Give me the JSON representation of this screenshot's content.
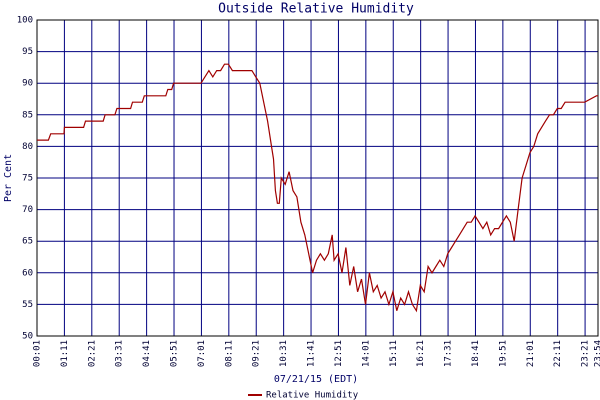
{
  "chart_data": {
    "type": "line",
    "title": "Outside Relative Humidity",
    "x_label": "07/21/15 (EDT)",
    "y_label": "Per Cent",
    "x": [
      "00:01",
      "00:30",
      "00:36",
      "01:10",
      "01:11",
      "02:00",
      "02:05",
      "02:50",
      "02:55",
      "03:20",
      "03:25",
      "04:00",
      "04:05",
      "04:30",
      "04:35",
      "05:30",
      "05:35",
      "05:45",
      "05:50",
      "06:50",
      "07:00",
      "07:10",
      "07:20",
      "07:30",
      "07:40",
      "07:50",
      "08:00",
      "08:10",
      "08:20",
      "08:40",
      "09:10",
      "09:20",
      "09:30",
      "09:40",
      "09:50",
      "10:00",
      "10:05",
      "10:10",
      "10:15",
      "10:20",
      "10:25",
      "10:35",
      "10:45",
      "10:55",
      "11:05",
      "11:15",
      "11:25",
      "11:35",
      "11:45",
      "11:55",
      "12:05",
      "12:15",
      "12:25",
      "12:35",
      "12:40",
      "12:50",
      "13:00",
      "13:10",
      "13:20",
      "13:30",
      "13:40",
      "13:50",
      "14:00",
      "14:10",
      "14:20",
      "14:30",
      "14:40",
      "14:50",
      "15:00",
      "15:10",
      "15:20",
      "15:30",
      "15:40",
      "15:50",
      "16:00",
      "16:10",
      "16:20",
      "16:30",
      "16:40",
      "16:50",
      "17:00",
      "17:10",
      "17:20",
      "17:30",
      "17:40",
      "17:50",
      "18:00",
      "18:10",
      "18:20",
      "18:30",
      "18:40",
      "18:50",
      "19:00",
      "19:10",
      "19:20",
      "19:30",
      "19:40",
      "19:50",
      "20:00",
      "20:10",
      "20:20",
      "20:30",
      "20:40",
      "20:50",
      "21:00",
      "21:10",
      "21:20",
      "21:30",
      "21:40",
      "21:50",
      "22:00",
      "22:10",
      "22:20",
      "22:30",
      "22:50",
      "23:20",
      "23:50",
      "23:54"
    ],
    "series": [
      {
        "name": "Relative Humidity",
        "color": "#a00000",
        "values": [
          81,
          81,
          82,
          82,
          83,
          83,
          84,
          84,
          85,
          85,
          86,
          86,
          87,
          87,
          88,
          88,
          89,
          89,
          90,
          90,
          90,
          91,
          92,
          91,
          92,
          92,
          93,
          93,
          92,
          92,
          92,
          91,
          90,
          87,
          84,
          80,
          78,
          73,
          71,
          71,
          75,
          74,
          76,
          73,
          72,
          68,
          66,
          63,
          60,
          62,
          63,
          62,
          63,
          66,
          62,
          63,
          60,
          64,
          58,
          61,
          57,
          59,
          55,
          60,
          57,
          58,
          56,
          57,
          55,
          57,
          54,
          56,
          55,
          57,
          55,
          54,
          58,
          57,
          61,
          60,
          61,
          62,
          61,
          63,
          64,
          65,
          66,
          67,
          68,
          68,
          69,
          68,
          67,
          68,
          66,
          67,
          67,
          68,
          69,
          68,
          65,
          70,
          75,
          77,
          79,
          80,
          82,
          83,
          84,
          85,
          85,
          86,
          86,
          87,
          87,
          87,
          88,
          88
        ]
      }
    ],
    "xlim": [
      "00:01",
      "23:54"
    ],
    "xticks": [
      "00:01",
      "01:11",
      "02:21",
      "03:31",
      "04:41",
      "05:51",
      "07:01",
      "08:11",
      "09:21",
      "10:31",
      "11:41",
      "12:51",
      "14:01",
      "15:11",
      "16:21",
      "17:31",
      "18:41",
      "19:51",
      "21:01",
      "22:11",
      "23:21",
      "23:54"
    ],
    "ylim": [
      50,
      100
    ],
    "yticks": [
      50,
      55,
      60,
      65,
      70,
      75,
      80,
      85,
      90,
      95,
      100
    ],
    "grid": true
  }
}
